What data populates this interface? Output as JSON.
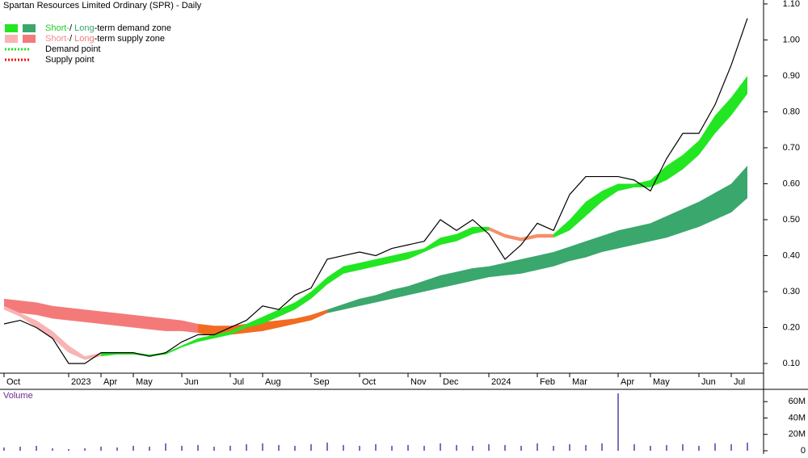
{
  "chart_data": {
    "type": "line",
    "title": "Spartan Resources Limited Ordinary (SPR) - Daily",
    "categories": [
      "Oct",
      null,
      null,
      null,
      "2023",
      null,
      "Apr",
      null,
      "May",
      null,
      null,
      "Jun",
      null,
      null,
      "Jul",
      null,
      "Aug",
      null,
      null,
      "Sep",
      null,
      null,
      "Oct",
      null,
      null,
      "Nov",
      null,
      "Dec",
      null,
      null,
      "2024",
      null,
      null,
      "Feb",
      null,
      "Mar",
      null,
      null,
      "Apr",
      null,
      "May",
      null,
      null,
      "Jun",
      null,
      "Jul",
      null
    ],
    "ylim": [
      0.073,
      1.111
    ],
    "yticks": [
      {
        "value": 0.1,
        "label": "0.10"
      },
      {
        "value": 0.2,
        "label": "0.20"
      },
      {
        "value": 0.3,
        "label": "0.30"
      },
      {
        "value": 0.4,
        "label": "0.40"
      },
      {
        "value": 0.5,
        "label": "0.50"
      },
      {
        "value": 0.6,
        "label": "0.60"
      },
      {
        "value": 0.7,
        "label": "0.70"
      },
      {
        "value": 0.8,
        "label": "0.80"
      },
      {
        "value": 0.9,
        "label": "0.90"
      },
      {
        "value": 1.0,
        "label": "1.00"
      },
      {
        "value": 1.1,
        "label": "1.10"
      }
    ],
    "series": [
      {
        "color": "#000000",
        "values": [
          0.21,
          0.22,
          0.2,
          0.17,
          0.1,
          0.1,
          0.13,
          0.13,
          0.13,
          0.12,
          0.13,
          0.16,
          0.18,
          0.18,
          0.2,
          0.22,
          0.26,
          0.25,
          0.29,
          0.31,
          0.39,
          0.4,
          0.41,
          0.4,
          0.42,
          0.43,
          0.44,
          0.5,
          0.47,
          0.5,
          0.46,
          0.39,
          0.43,
          0.49,
          0.47,
          0.57,
          0.62,
          0.62,
          0.62,
          0.61,
          0.58,
          0.67,
          0.74,
          0.74,
          0.82,
          0.93,
          1.06
        ]
      }
    ],
    "zones": [
      {
        "color": "#f47a7a",
        "upper": [
          0.28,
          0.275,
          0.27,
          0.26,
          0.255,
          0.25,
          0.245,
          0.24,
          0.235,
          0.23,
          0.225,
          0.22,
          0.21,
          null,
          null,
          null,
          null,
          null,
          null,
          null,
          null,
          null,
          null,
          null,
          null,
          null,
          null,
          null,
          null,
          null,
          null,
          null,
          null,
          null,
          null,
          null,
          null,
          null,
          null,
          null,
          null,
          null,
          null,
          null,
          null,
          null,
          null
        ],
        "lower": [
          0.25,
          0.24,
          0.235,
          0.225,
          0.22,
          0.215,
          0.21,
          0.205,
          0.2,
          0.195,
          0.19,
          0.19,
          0.185,
          null,
          null,
          null,
          null,
          null,
          null,
          null,
          null,
          null,
          null,
          null,
          null,
          null,
          null,
          null,
          null,
          null,
          null,
          null,
          null,
          null,
          null,
          null,
          null,
          null,
          null,
          null,
          null,
          null,
          null,
          null,
          null,
          null,
          null
        ]
      },
      {
        "color": "#f26b21",
        "upper": [
          null,
          null,
          null,
          null,
          null,
          null,
          null,
          null,
          null,
          null,
          null,
          null,
          0.21,
          0.205,
          0.205,
          0.21,
          0.215,
          0.22,
          0.225,
          0.235,
          0.25,
          null,
          null,
          null,
          null,
          null,
          null,
          null,
          null,
          null,
          null,
          null,
          null,
          null,
          null,
          null,
          null,
          null,
          null,
          null,
          null,
          null,
          null,
          null,
          null,
          null,
          null
        ],
        "lower": [
          null,
          null,
          null,
          null,
          null,
          null,
          null,
          null,
          null,
          null,
          null,
          null,
          0.185,
          0.175,
          0.18,
          0.185,
          0.19,
          0.2,
          0.21,
          0.22,
          0.24,
          null,
          null,
          null,
          null,
          null,
          null,
          null,
          null,
          null,
          null,
          null,
          null,
          null,
          null,
          null,
          null,
          null,
          null,
          null,
          null,
          null,
          null,
          null,
          null,
          null,
          null
        ]
      },
      {
        "color": "#3aa76d",
        "upper": [
          null,
          null,
          null,
          null,
          null,
          null,
          null,
          null,
          null,
          null,
          null,
          null,
          null,
          null,
          null,
          null,
          null,
          null,
          null,
          null,
          0.25,
          0.265,
          0.28,
          0.29,
          0.305,
          0.315,
          0.33,
          0.345,
          0.355,
          0.365,
          0.37,
          0.38,
          0.39,
          0.4,
          0.41,
          0.425,
          0.44,
          0.455,
          0.47,
          0.48,
          0.49,
          0.51,
          0.53,
          0.55,
          0.575,
          0.6,
          0.65
        ],
        "lower": [
          null,
          null,
          null,
          null,
          null,
          null,
          null,
          null,
          null,
          null,
          null,
          null,
          null,
          null,
          null,
          null,
          null,
          null,
          null,
          null,
          0.24,
          0.25,
          0.26,
          0.27,
          0.28,
          0.29,
          0.3,
          0.31,
          0.32,
          0.33,
          0.34,
          0.345,
          0.35,
          0.36,
          0.37,
          0.385,
          0.395,
          0.41,
          0.42,
          0.43,
          0.44,
          0.45,
          0.465,
          0.48,
          0.5,
          0.52,
          0.56
        ]
      },
      {
        "color": "#f8b4b4",
        "upper": [
          0.26,
          0.24,
          0.22,
          0.19,
          0.15,
          0.12,
          0.13,
          null,
          null,
          null,
          null,
          null,
          null,
          null,
          null,
          null,
          null,
          null,
          null,
          null,
          null,
          null,
          null,
          null,
          null,
          null,
          null,
          null,
          null,
          null,
          null,
          null,
          null,
          null,
          null,
          null,
          null,
          null,
          null,
          null,
          null,
          null,
          null,
          null,
          null,
          null,
          null
        ],
        "lower": [
          0.25,
          0.23,
          0.2,
          0.17,
          0.13,
          0.11,
          0.12,
          null,
          null,
          null,
          null,
          null,
          null,
          null,
          null,
          null,
          null,
          null,
          null,
          null,
          null,
          null,
          null,
          null,
          null,
          null,
          null,
          null,
          null,
          null,
          null,
          null,
          null,
          null,
          null,
          null,
          null,
          null,
          null,
          null,
          null,
          null,
          null,
          null,
          null,
          null,
          null
        ]
      },
      {
        "color": "#f4906a",
        "upper": [
          null,
          null,
          null,
          null,
          null,
          null,
          null,
          null,
          null,
          null,
          null,
          null,
          null,
          null,
          null,
          null,
          null,
          null,
          null,
          null,
          null,
          null,
          null,
          null,
          null,
          null,
          null,
          null,
          null,
          null,
          0.48,
          0.46,
          0.45,
          0.46,
          0.46,
          null,
          null,
          null,
          null,
          null,
          null,
          null,
          null,
          null,
          null,
          null,
          null
        ],
        "lower": [
          null,
          null,
          null,
          null,
          null,
          null,
          null,
          null,
          null,
          null,
          null,
          null,
          null,
          null,
          null,
          null,
          null,
          null,
          null,
          null,
          null,
          null,
          null,
          null,
          null,
          null,
          null,
          null,
          null,
          null,
          0.47,
          0.45,
          0.44,
          0.45,
          0.45,
          null,
          null,
          null,
          null,
          null,
          null,
          null,
          null,
          null,
          null,
          null,
          null
        ]
      },
      {
        "color": "#22e622",
        "upper": [
          null,
          null,
          null,
          null,
          null,
          null,
          0.13,
          0.13,
          0.13,
          0.125,
          0.13,
          0.15,
          0.17,
          0.18,
          0.19,
          0.21,
          0.23,
          0.25,
          0.27,
          0.3,
          0.34,
          0.37,
          0.38,
          0.39,
          0.4,
          0.41,
          0.42,
          0.45,
          0.46,
          0.48,
          0.48,
          null,
          null,
          null,
          0.46,
          0.5,
          0.55,
          0.58,
          0.6,
          0.6,
          0.61,
          0.65,
          0.68,
          0.72,
          0.79,
          0.84,
          0.9
        ],
        "lower": [
          null,
          null,
          null,
          null,
          null,
          null,
          0.12,
          0.125,
          0.125,
          0.12,
          0.125,
          0.145,
          0.16,
          0.17,
          0.18,
          0.2,
          0.21,
          0.23,
          0.25,
          0.28,
          0.32,
          0.35,
          0.36,
          0.37,
          0.38,
          0.39,
          0.41,
          0.43,
          0.44,
          0.46,
          0.47,
          null,
          null,
          null,
          0.45,
          0.47,
          0.51,
          0.55,
          0.58,
          0.59,
          0.59,
          0.61,
          0.64,
          0.68,
          0.74,
          0.79,
          0.85
        ]
      }
    ],
    "legend": [
      {
        "texts": [
          "Short-",
          "/ ",
          "Long",
          "-term demand zone"
        ],
        "colors": [
          "#22cc22",
          "#000000",
          "#3aa76d",
          "#000000"
        ],
        "swatches": [
          "#22e622",
          "#3aa76d"
        ]
      },
      {
        "texts": [
          "Short-",
          "/ ",
          "Long",
          "-term supply zone"
        ],
        "colors": [
          "#f48a8a",
          "#000000",
          "#f47a7a",
          "#000000"
        ],
        "swatches": [
          "#f8b4b4",
          "#f47a7a"
        ]
      },
      {
        "texts": [
          "Demand point"
        ],
        "colors": [
          "#000000"
        ],
        "dotted": "#22e622"
      },
      {
        "texts": [
          "Supply point"
        ],
        "colors": [
          "#000000"
        ],
        "dotted": "#ee1111"
      }
    ],
    "volume": {
      "label": "Volume",
      "color": "#7a6fbf",
      "values": [
        4,
        5,
        6,
        3,
        2,
        3,
        5,
        4,
        6,
        5,
        9,
        6,
        7,
        5,
        6,
        8,
        9,
        7,
        6,
        8,
        10,
        7,
        6,
        8,
        6,
        7,
        6,
        9,
        7,
        6,
        8,
        7,
        6,
        9,
        6,
        8,
        7,
        9,
        70,
        8,
        6,
        7,
        8,
        6,
        9,
        8,
        10
      ],
      "ylim": [
        0,
        75
      ],
      "yticks": [
        0,
        {
          "value": 20,
          "label": "20M"
        },
        {
          "value": 40,
          "label": "40M"
        },
        {
          "value": 60,
          "label": "60M"
        }
      ]
    }
  }
}
